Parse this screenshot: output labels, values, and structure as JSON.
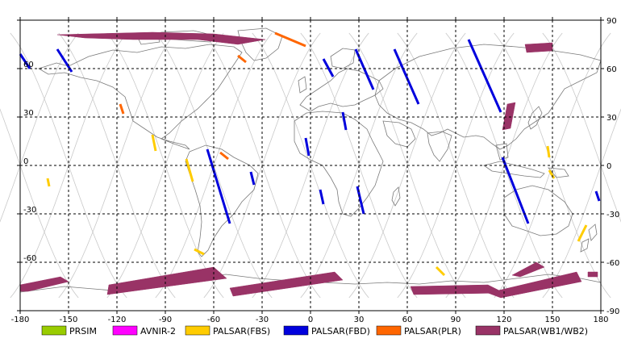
{
  "map": {
    "lon_ticks": [
      "-180",
      "-150",
      "-120",
      "-90",
      "-60",
      "-30",
      "0",
      "30",
      "60",
      "90",
      "120",
      "150",
      "180"
    ],
    "lat_ticks_right": [
      "90",
      "60",
      "30",
      "0",
      "-30",
      "-60",
      "-90"
    ],
    "lat_ticks_left": [
      "",
      "60",
      "30",
      "0",
      "-30",
      "-60",
      ""
    ],
    "lon_range": [
      -180,
      180
    ],
    "lat_range": [
      -90,
      90
    ],
    "grid": "dashed-black-every-30deg",
    "colors": {
      "frame": "#000000",
      "grid": "#000000",
      "orbit_tracks": "#c8c8c8",
      "coastline": "#7a7a7a"
    }
  },
  "legend": {
    "placement": "bottom",
    "items": [
      {
        "label": "PRSIM",
        "color": "#99cc00"
      },
      {
        "label": "AVNIR-2",
        "color": "#ff00ff"
      },
      {
        "label": "PALSAR(FBS)",
        "color": "#ffcc00"
      },
      {
        "label": "PALSAR(FBD)",
        "color": "#0000dd"
      },
      {
        "label": "PALSAR(PLR)",
        "color": "#ff6600"
      },
      {
        "label": "PALSAR(WB1/WB2)",
        "color": "#993366"
      }
    ]
  },
  "chart_data": {
    "type": "map",
    "description_of_marks": "observation swaths in lon/lat degrees",
    "swaths": [
      {
        "mode": "PALSAR(WB1/WB2)",
        "polygon": [
          [
            -157,
            81
          ],
          [
            -98,
            82.5
          ],
          [
            -60,
            81.5
          ],
          [
            -28,
            78
          ],
          [
            -45,
            75
          ],
          [
            -70,
            78
          ],
          [
            -110,
            78
          ],
          [
            -140,
            79
          ]
        ]
      },
      {
        "mode": "PALSAR(WB1/WB2)",
        "polygon": [
          [
            133,
            75
          ],
          [
            150,
            76
          ],
          [
            150,
            71
          ],
          [
            134,
            70
          ]
        ]
      },
      {
        "mode": "PALSAR(WB1/WB2)",
        "polygon": [
          [
            122,
            38
          ],
          [
            127,
            39
          ],
          [
            124,
            23
          ],
          [
            119,
            22
          ]
        ]
      },
      {
        "mode": "PALSAR(WB1/WB2)",
        "polygon": [
          [
            -180,
            -74
          ],
          [
            -155,
            -69
          ],
          [
            -150,
            -72
          ],
          [
            -175,
            -78
          ],
          [
            -180,
            -78
          ]
        ]
      },
      {
        "mode": "PALSAR(WB1/WB2)",
        "polygon": [
          [
            -125,
            -74
          ],
          [
            -60,
            -63
          ],
          [
            -52,
            -70
          ],
          [
            -126,
            -80
          ]
        ]
      },
      {
        "mode": "PALSAR(WB1/WB2)",
        "polygon": [
          [
            -50,
            -76
          ],
          [
            15,
            -66
          ],
          [
            20,
            -71
          ],
          [
            -48,
            -81
          ]
        ]
      },
      {
        "mode": "PALSAR(WB1/WB2)",
        "polygon": [
          [
            62,
            -75
          ],
          [
            110,
            -74
          ],
          [
            120,
            -79
          ],
          [
            64,
            -80
          ]
        ]
      },
      {
        "mode": "PALSAR(WB1/WB2)",
        "polygon": [
          [
            110,
            -79
          ],
          [
            165,
            -66
          ],
          [
            168,
            -72
          ],
          [
            118,
            -82
          ]
        ]
      },
      {
        "mode": "PALSAR(WB1/WB2)",
        "polygon": [
          [
            125,
            -68
          ],
          [
            140,
            -60
          ],
          [
            145,
            -63
          ],
          [
            130,
            -69
          ]
        ]
      },
      {
        "mode": "PALSAR(WB1/WB2)",
        "polygon": [
          [
            172,
            -66
          ],
          [
            178,
            -66
          ],
          [
            178,
            -69
          ],
          [
            172,
            -69
          ]
        ]
      },
      {
        "mode": "PALSAR(FBD)",
        "line": [
          [
            -180,
            69
          ],
          [
            -174,
            60
          ]
        ]
      },
      {
        "mode": "PALSAR(FBD)",
        "line": [
          [
            -157,
            72
          ],
          [
            -148,
            58
          ]
        ]
      },
      {
        "mode": "PALSAR(FBD)",
        "line": [
          [
            -64,
            10
          ],
          [
            -50,
            -36
          ]
        ]
      },
      {
        "mode": "PALSAR(FBD)",
        "line": [
          [
            -37,
            -4
          ],
          [
            -35,
            -12
          ]
        ]
      },
      {
        "mode": "PALSAR(FBD)",
        "line": [
          [
            8,
            66
          ],
          [
            14,
            55
          ]
        ]
      },
      {
        "mode": "PALSAR(FBD)",
        "line": [
          [
            28,
            72
          ],
          [
            39,
            47
          ]
        ]
      },
      {
        "mode": "PALSAR(FBD)",
        "line": [
          [
            52,
            72
          ],
          [
            67,
            38
          ]
        ]
      },
      {
        "mode": "PALSAR(FBD)",
        "line": [
          [
            98,
            78
          ],
          [
            118,
            33
          ]
        ]
      },
      {
        "mode": "PALSAR(FBD)",
        "line": [
          [
            119,
            5
          ],
          [
            135,
            -36
          ]
        ]
      },
      {
        "mode": "PALSAR(FBD)",
        "line": [
          [
            20,
            33
          ],
          [
            22,
            22
          ]
        ]
      },
      {
        "mode": "PALSAR(FBD)",
        "line": [
          [
            -3,
            17
          ],
          [
            -1,
            6
          ]
        ]
      },
      {
        "mode": "PALSAR(FBD)",
        "line": [
          [
            6,
            -15
          ],
          [
            8,
            -24
          ]
        ]
      },
      {
        "mode": "PALSAR(FBD)",
        "line": [
          [
            29,
            -13
          ],
          [
            33,
            -30
          ]
        ]
      },
      {
        "mode": "PALSAR(FBD)",
        "line": [
          [
            177,
            -16
          ],
          [
            179,
            -22
          ]
        ]
      },
      {
        "mode": "PALSAR(FBS)",
        "line": [
          [
            -77,
            4
          ],
          [
            -73,
            -10
          ]
        ]
      },
      {
        "mode": "PALSAR(FBS)",
        "line": [
          [
            -163,
            -8
          ],
          [
            -162,
            -13
          ]
        ]
      },
      {
        "mode": "PALSAR(FBS)",
        "line": [
          [
            -96,
            9
          ],
          [
            -98,
            19
          ]
        ]
      },
      {
        "mode": "PALSAR(FBS)",
        "line": [
          [
            -72,
            -52
          ],
          [
            -66,
            -55
          ]
        ]
      },
      {
        "mode": "PALSAR(FBS)",
        "line": [
          [
            78,
            -63
          ],
          [
            83,
            -68
          ]
        ]
      },
      {
        "mode": "PALSAR(FBS)",
        "line": [
          [
            148,
            -3
          ],
          [
            151,
            -8
          ]
        ]
      },
      {
        "mode": "PALSAR(FBS)",
        "line": [
          [
            171,
            -37
          ],
          [
            166,
            -47
          ]
        ]
      },
      {
        "mode": "PALSAR(FBS)",
        "line": [
          [
            147,
            12
          ],
          [
            148,
            5
          ]
        ]
      },
      {
        "mode": "PALSAR(PLR)",
        "line": [
          [
            -22,
            82
          ],
          [
            -3,
            74
          ]
        ]
      },
      {
        "mode": "PALSAR(PLR)",
        "line": [
          [
            -45,
            68
          ],
          [
            -40,
            64
          ]
        ]
      },
      {
        "mode": "PALSAR(PLR)",
        "line": [
          [
            -118,
            38
          ],
          [
            -116,
            32
          ]
        ]
      },
      {
        "mode": "PALSAR(PLR)",
        "line": [
          [
            -56,
            8
          ],
          [
            -51,
            4
          ]
        ]
      }
    ]
  }
}
